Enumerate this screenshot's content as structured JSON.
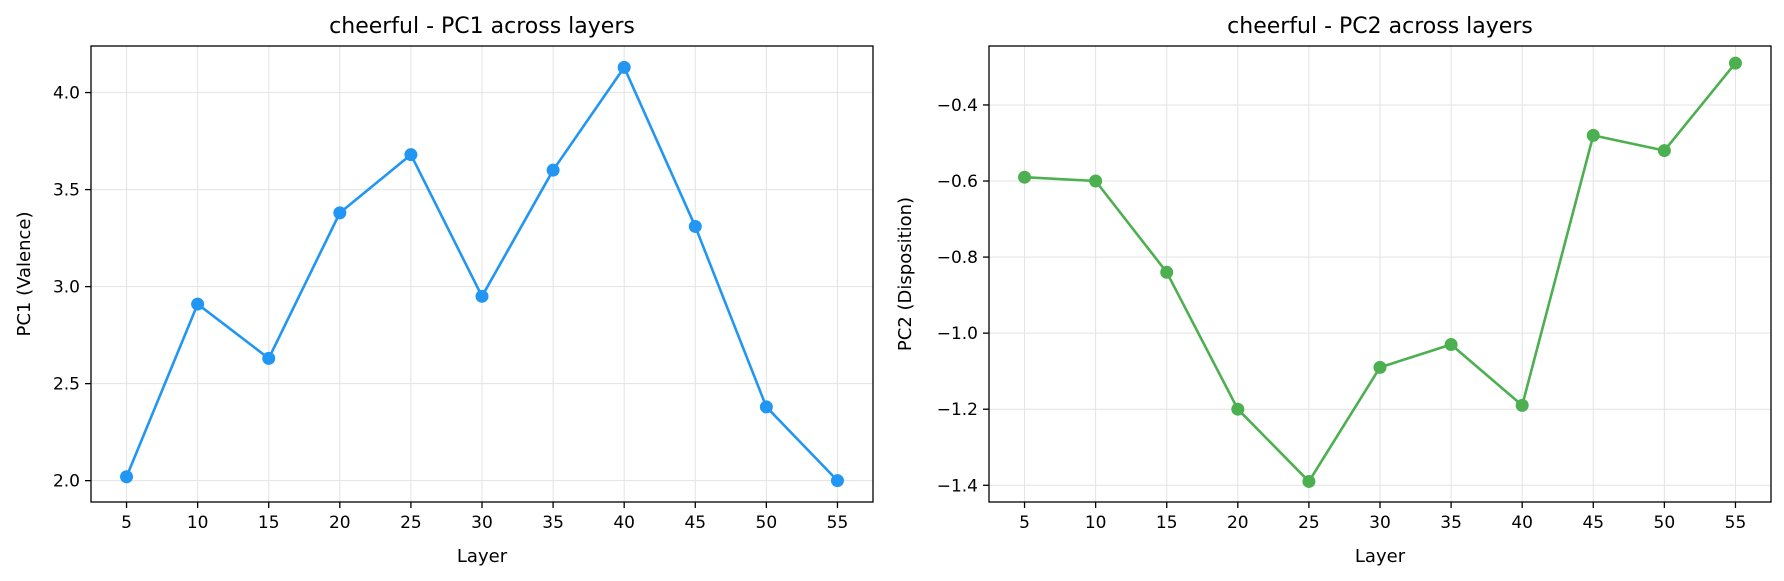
{
  "chart_data": [
    {
      "type": "line",
      "title": "cheerful - PC1 across layers",
      "xlabel": "Layer",
      "ylabel": "PC1 (Valence)",
      "x": [
        5,
        10,
        15,
        20,
        25,
        30,
        35,
        40,
        45,
        50,
        55
      ],
      "series": [
        {
          "values": [
            2.02,
            2.91,
            2.63,
            3.38,
            3.68,
            2.95,
            3.6,
            4.13,
            3.31,
            2.38,
            2.0
          ],
          "color": "#2196F3"
        }
      ],
      "xticks": [
        5,
        10,
        15,
        20,
        25,
        30,
        35,
        40,
        45,
        50,
        55
      ],
      "xtick_labels": [
        "5",
        "10",
        "15",
        "20",
        "25",
        "30",
        "35",
        "40",
        "45",
        "50",
        "55"
      ],
      "yticks": [
        2.0,
        2.5,
        3.0,
        3.5,
        4.0
      ],
      "ytick_labels": [
        "2.0",
        "2.5",
        "3.0",
        "3.5",
        "4.0"
      ],
      "xlim": [
        2.5,
        57.5
      ],
      "ylim": [
        1.89,
        4.24
      ],
      "grid": true,
      "marker": "circle"
    },
    {
      "type": "line",
      "title": "cheerful - PC2 across layers",
      "xlabel": "Layer",
      "ylabel": "PC2 (Disposition)",
      "x": [
        5,
        10,
        15,
        20,
        25,
        30,
        35,
        40,
        45,
        50,
        55
      ],
      "series": [
        {
          "values": [
            -0.59,
            -0.6,
            -0.84,
            -1.2,
            -1.39,
            -1.09,
            -1.03,
            -1.19,
            -0.48,
            -0.52,
            -0.29
          ],
          "color": "#4CAF50"
        }
      ],
      "xticks": [
        5,
        10,
        15,
        20,
        25,
        30,
        35,
        40,
        45,
        50,
        55
      ],
      "xtick_labels": [
        "5",
        "10",
        "15",
        "20",
        "25",
        "30",
        "35",
        "40",
        "45",
        "50",
        "55"
      ],
      "yticks": [
        -1.4,
        -1.2,
        -1.0,
        -0.8,
        -0.6,
        -0.4
      ],
      "ytick_labels": [
        "−1.4",
        "−1.2",
        "−1.0",
        "−0.8",
        "−0.6",
        "−0.4"
      ],
      "xlim": [
        2.5,
        57.5
      ],
      "ylim": [
        -1.444,
        -0.245
      ],
      "grid": true,
      "marker": "circle"
    }
  ]
}
